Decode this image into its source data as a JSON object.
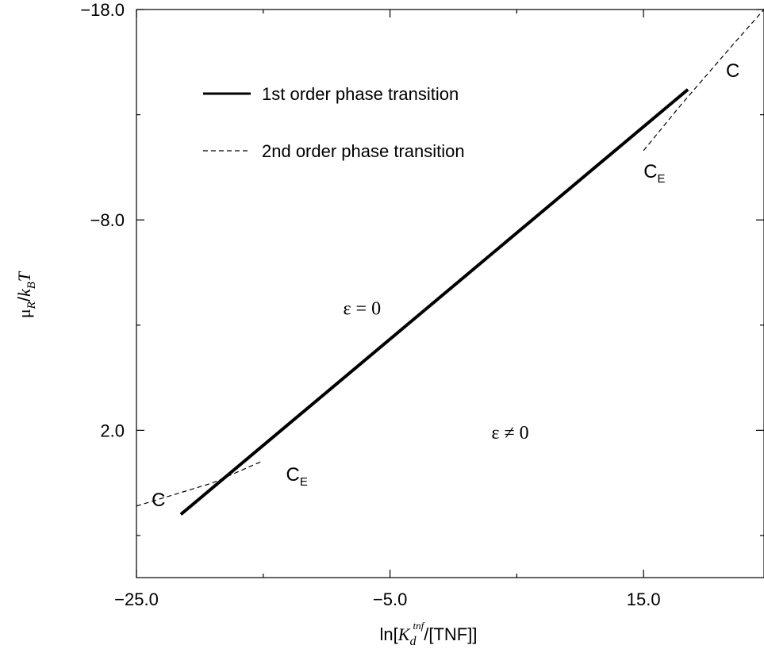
{
  "chart_data": {
    "type": "line",
    "xlabel_prefix": "ln[",
    "xlabel_K": "K",
    "xlabel_sub": "d",
    "xlabel_sup": "tnf",
    "xlabel_suffix": "/[TNF]]",
    "ylabel_mu": "μ",
    "ylabel_mu_sub": "R",
    "ylabel_slash": "/",
    "ylabel_k": "k",
    "ylabel_k_sub": "B",
    "ylabel_T": "T",
    "xlim": [
      -25.0,
      24.5
    ],
    "ylim": [
      -18.0,
      9.0
    ],
    "y_inverted": true,
    "x_ticks": [
      -25.0,
      -5.0,
      15.0
    ],
    "x_tick_labels": [
      "−25.0",
      "−5.0",
      "15.0"
    ],
    "x_minor_ticks": [
      -15.0,
      5.0
    ],
    "y_ticks": [
      -18.0,
      -8.0,
      2.0
    ],
    "y_tick_labels": [
      "−18.0",
      "−8.0",
      "2.0"
    ],
    "y_minor_ticks": [
      -13.0,
      -3.0,
      7.0
    ],
    "series": [
      {
        "name": "1st order phase transition",
        "style": "solid",
        "color": "#000000",
        "x": [
          -21.5,
          18.5
        ],
        "y": [
          6.0,
          -14.2
        ]
      },
      {
        "name": "2nd order phase transition",
        "style": "dashed",
        "color": "#000000",
        "x": [
          -25.0,
          -19.0,
          -15.2
        ],
        "y": [
          5.6,
          4.5,
          3.5
        ]
      },
      {
        "name": "2nd order phase transition (upper)",
        "style": "dashed",
        "color": "#000000",
        "x": [
          15.0,
          18.0,
          22.0,
          24.5
        ],
        "y": [
          -11.3,
          -13.5,
          -16.3,
          -18.0
        ]
      }
    ],
    "point_labels": [
      {
        "main": "C",
        "sub": "",
        "x": -23.8,
        "y": 5.6
      },
      {
        "main": "C",
        "sub": "E",
        "x": -13.2,
        "y": 4.4
      },
      {
        "main": "C",
        "sub": "E",
        "x": 15.0,
        "y": -10.0
      },
      {
        "main": "C",
        "sub": "",
        "x": 21.5,
        "y": -14.8
      }
    ],
    "region_labels": [
      {
        "text": "ε = 0",
        "x": -8.7,
        "y": -3.5
      },
      {
        "text": "ε ≠ 0",
        "x": 3.0,
        "y": 2.4
      }
    ],
    "legend": {
      "position": "top-left",
      "items": [
        {
          "label": "1st order phase transition",
          "style": "solid"
        },
        {
          "label": "2nd order phase transition",
          "style": "dashed"
        }
      ]
    }
  }
}
